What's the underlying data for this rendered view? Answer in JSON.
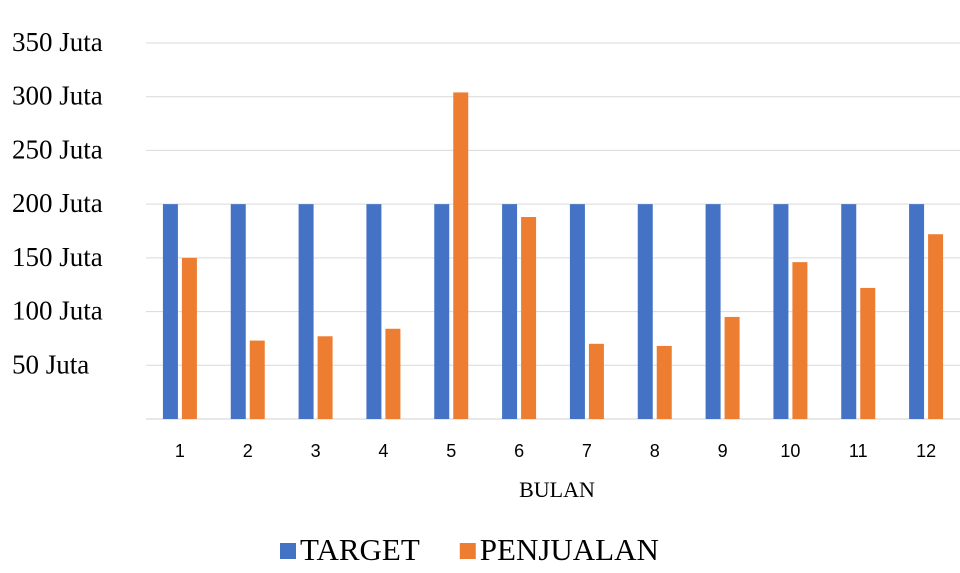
{
  "chart_data": {
    "type": "bar",
    "title": "",
    "xlabel": "BULAN",
    "ylabel": "",
    "categories": [
      "1",
      "2",
      "3",
      "4",
      "5",
      "6",
      "7",
      "8",
      "9",
      "10",
      "11",
      "12"
    ],
    "series": [
      {
        "name": "TARGET",
        "color": "#4472c4",
        "values": [
          200,
          200,
          200,
          200,
          200,
          200,
          200,
          200,
          200,
          200,
          200,
          200
        ]
      },
      {
        "name": "PENJUALAN",
        "color": "#ed7d31",
        "values": [
          150,
          73,
          77,
          84,
          304,
          188,
          70,
          68,
          95,
          146,
          122,
          172
        ]
      }
    ],
    "ylim": [
      0,
      350
    ],
    "yticks": [
      {
        "value": 50,
        "label": "50 Juta"
      },
      {
        "value": 100,
        "label": "100 Juta"
      },
      {
        "value": 150,
        "label": "150 Juta"
      },
      {
        "value": 200,
        "label": "200 Juta"
      },
      {
        "value": 250,
        "label": "250 Juta"
      },
      {
        "value": 300,
        "label": "300 Juta"
      },
      {
        "value": 350,
        "label": "350 Juta"
      }
    ],
    "grid": true,
    "legend_position": "bottom"
  }
}
